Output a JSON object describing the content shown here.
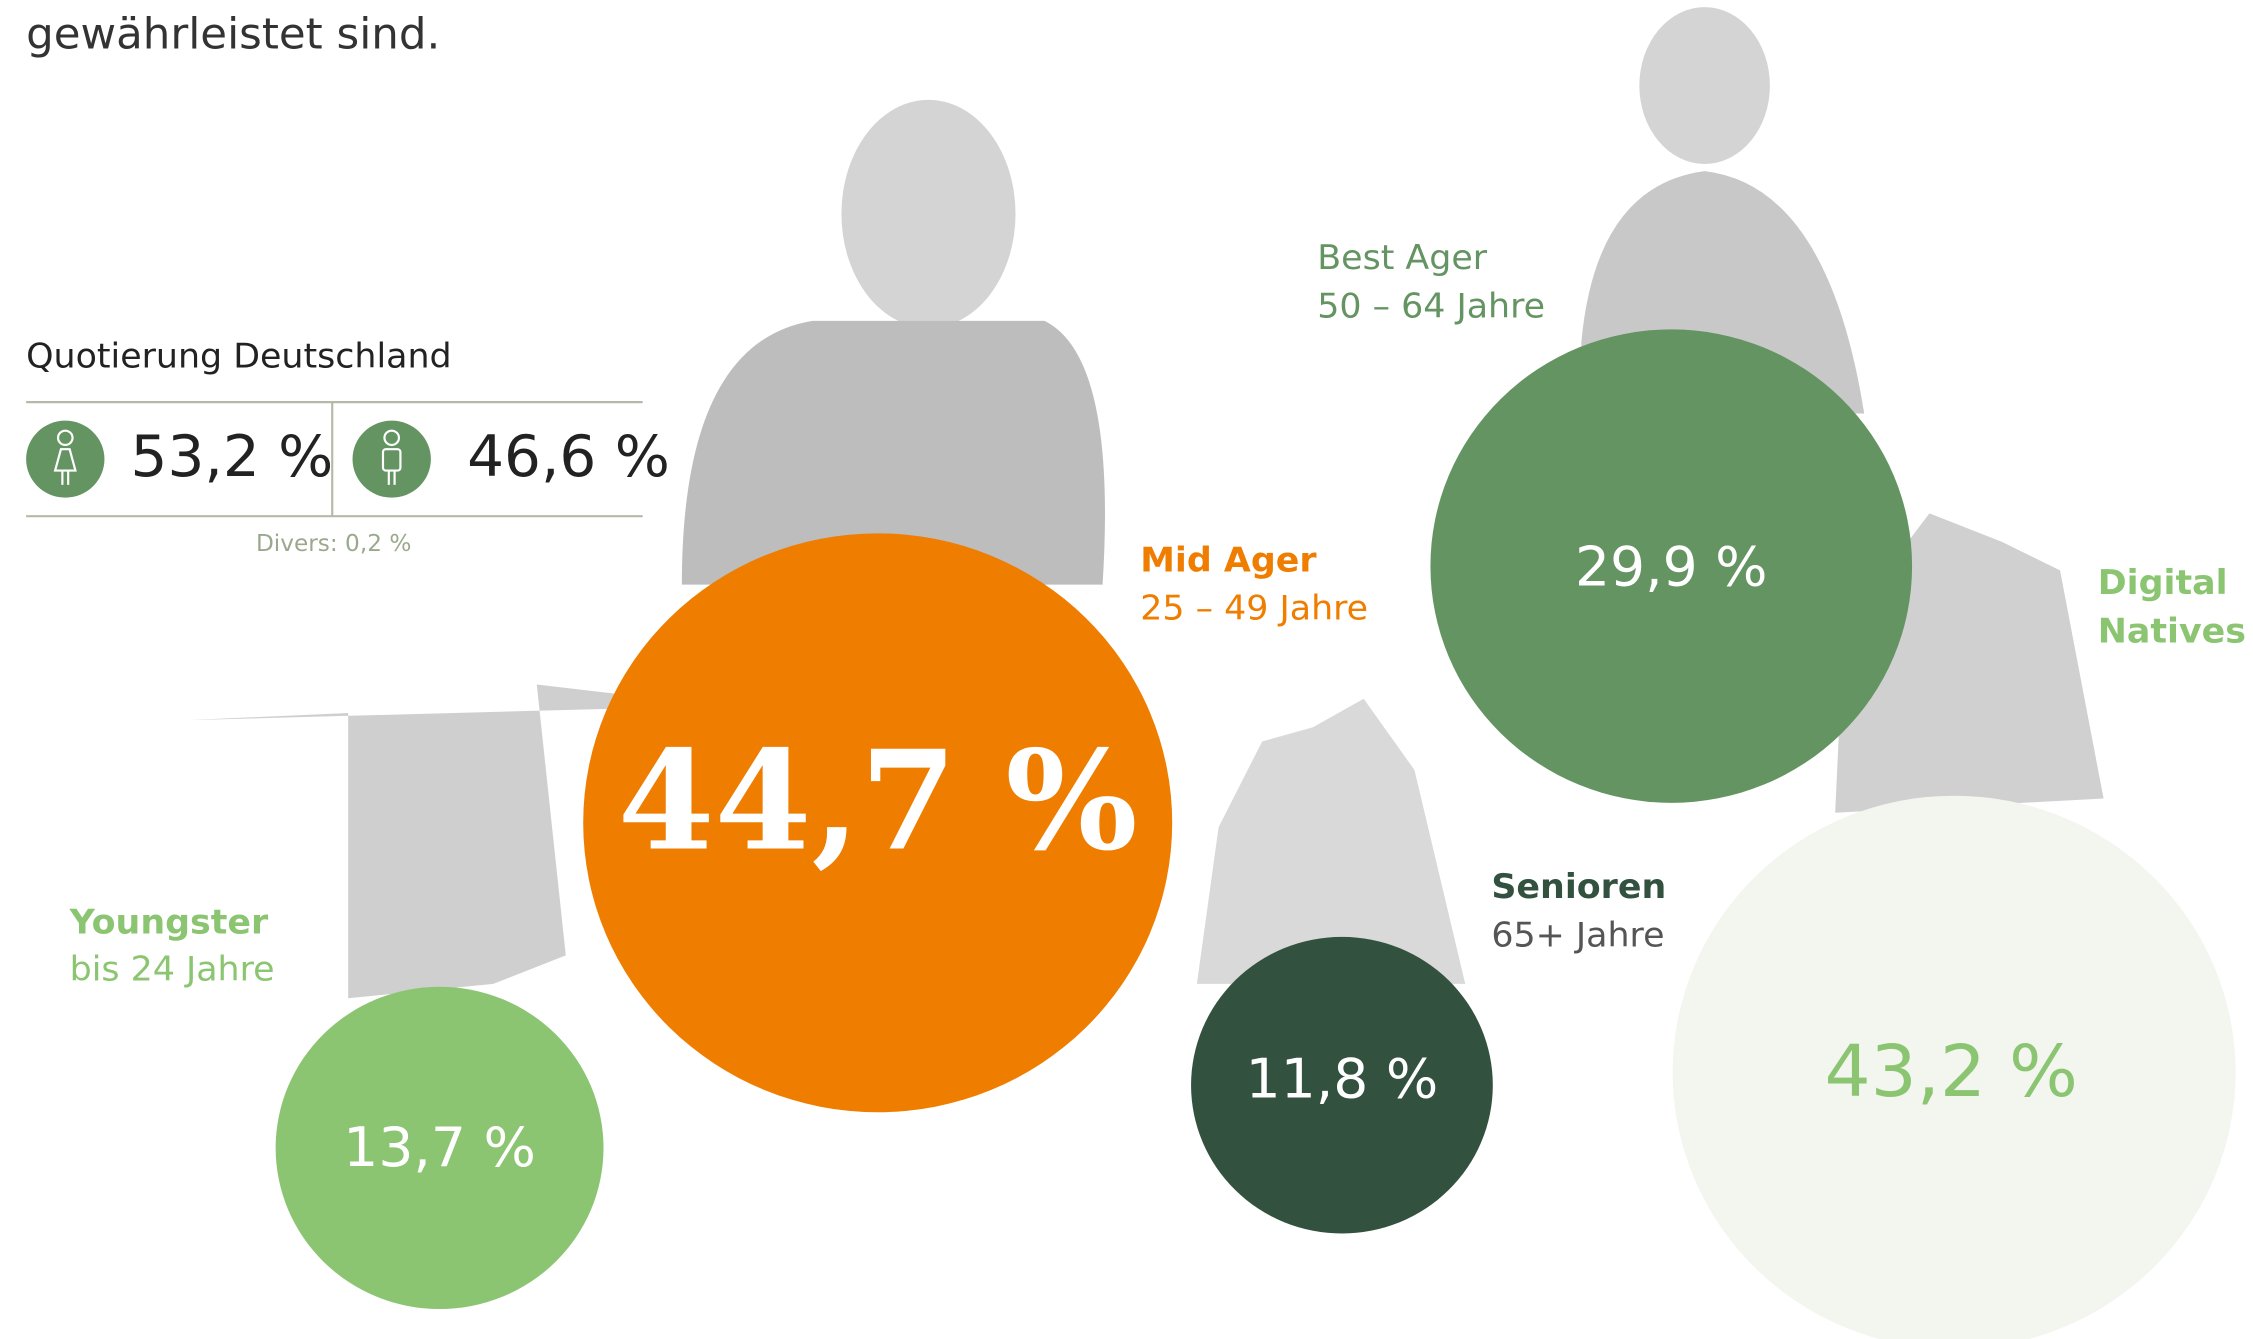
{
  "intro": {
    "text": "gewährleistet sind."
  },
  "quota": {
    "title": "Quotierung Deutschland",
    "female": "53,2 %",
    "male": "46,6 %",
    "divers": "Divers: 0,2 %"
  },
  "segments": [
    {
      "name": "Youngster",
      "age": "bis 24 Jahre",
      "share": "13,7 %"
    },
    {
      "name": "Mid Ager",
      "age": "25 – 49 Jahre",
      "share": "44,7 %"
    },
    {
      "name": "Best Ager",
      "age": "50 – 64 Jahre",
      "share": "29,9 %"
    },
    {
      "name": "Senioren",
      "age": "65+ Jahre",
      "share": "11,8 %"
    },
    {
      "name_lines": [
        "Digital",
        "Natives"
      ],
      "share": "43,2 %"
    }
  ]
}
